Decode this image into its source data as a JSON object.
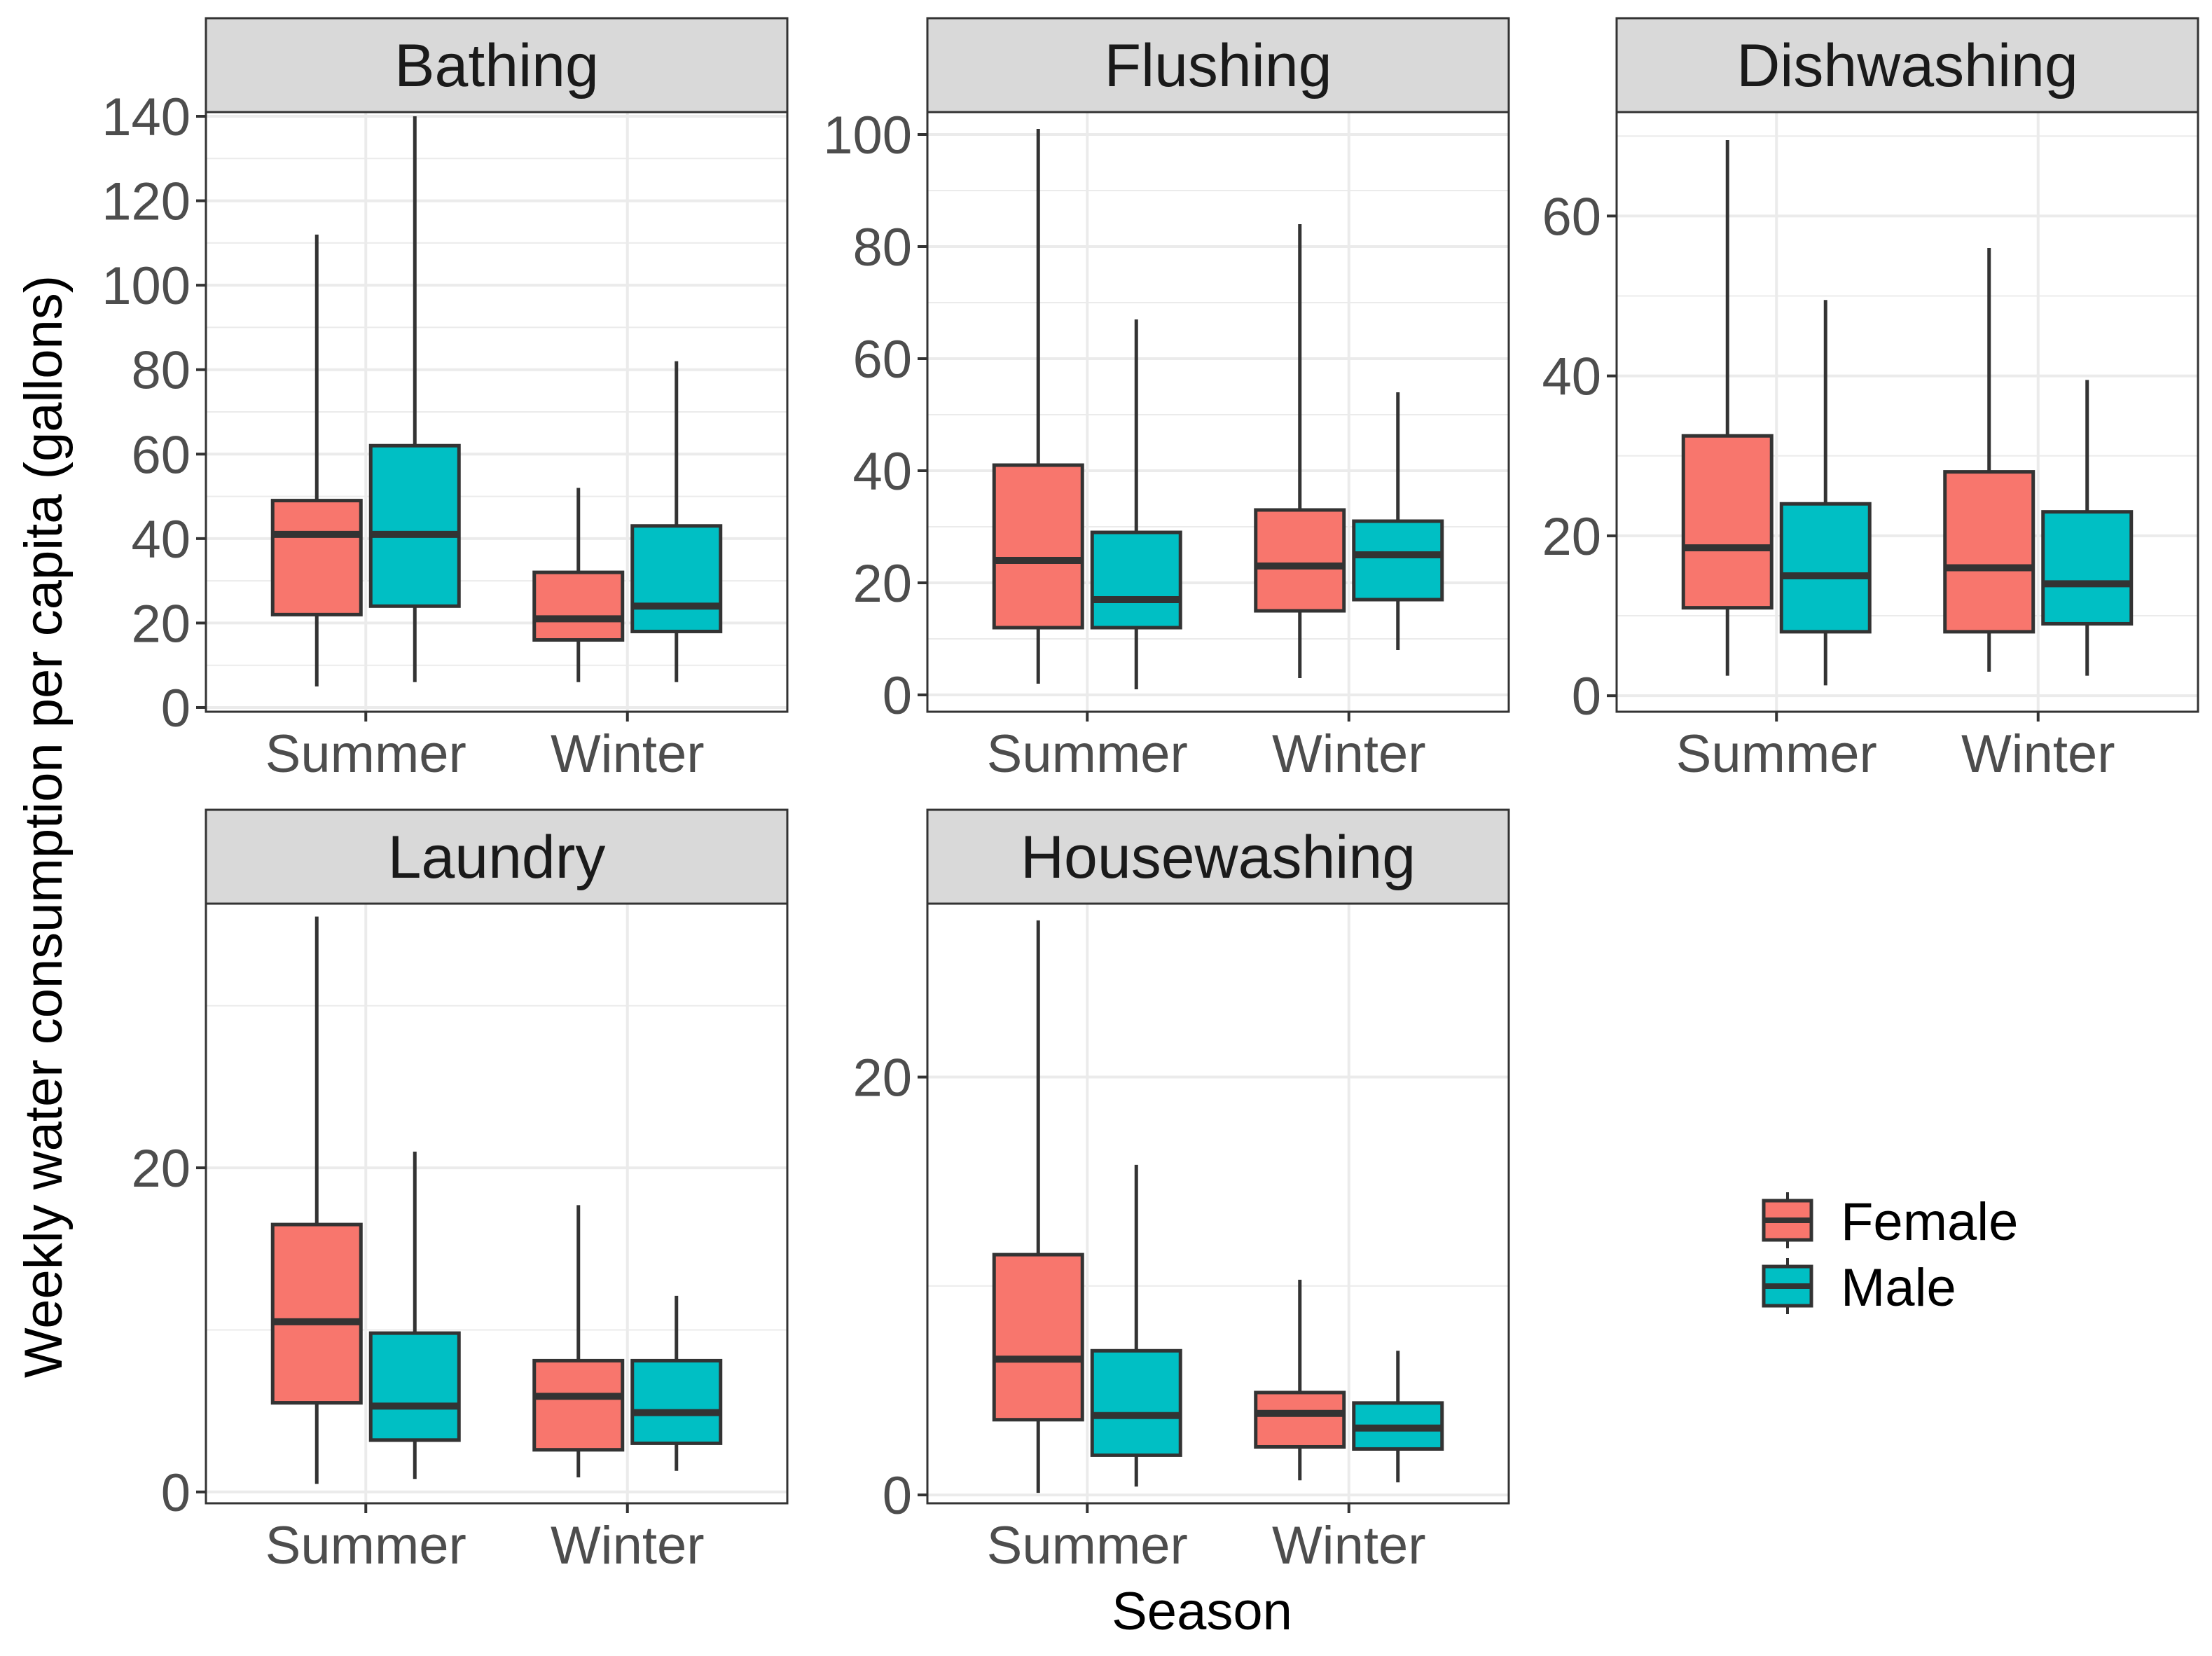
{
  "chart_data": {
    "type": "boxplot",
    "x_label": "Season",
    "y_label": "Weekly water consumption per capita (gallons)",
    "categories": [
      "Summer",
      "Winter"
    ],
    "legend": {
      "position": "right",
      "items": [
        {
          "name": "Female",
          "color": "#F8766D"
        },
        {
          "name": "Male",
          "color": "#00BFC4"
        }
      ]
    },
    "style": {
      "panel_border": "#333333",
      "strip_fill": "#D9D9D9",
      "grid_color": "#EBEBEB",
      "box_line": "#333333"
    },
    "panels": [
      {
        "title": "Bathing",
        "ylim": [
          -1,
          141
        ],
        "ticks": [
          0,
          20,
          40,
          60,
          80,
          100,
          120,
          140
        ],
        "minor": [
          10,
          30,
          50,
          70,
          90,
          110,
          130
        ],
        "boxes": [
          {
            "season": "Summer",
            "group": "Female",
            "min": 5,
            "q1": 22,
            "median": 41,
            "q3": 49,
            "max": 112
          },
          {
            "season": "Summer",
            "group": "Male",
            "min": 6,
            "q1": 24,
            "median": 41,
            "q3": 62,
            "max": 140
          },
          {
            "season": "Winter",
            "group": "Female",
            "min": 6,
            "q1": 16,
            "median": 21,
            "q3": 32,
            "max": 52
          },
          {
            "season": "Winter",
            "group": "Male",
            "min": 6,
            "q1": 18,
            "median": 24,
            "q3": 43,
            "max": 82
          }
        ]
      },
      {
        "title": "Flushing",
        "ylim": [
          -3,
          104
        ],
        "ticks": [
          0,
          20,
          40,
          60,
          80,
          100
        ],
        "minor": [
          10,
          30,
          50,
          70,
          90
        ],
        "boxes": [
          {
            "season": "Summer",
            "group": "Female",
            "min": 2,
            "q1": 12,
            "median": 24,
            "q3": 41,
            "max": 101
          },
          {
            "season": "Summer",
            "group": "Male",
            "min": 1,
            "q1": 12,
            "median": 17,
            "q3": 29,
            "max": 67
          },
          {
            "season": "Winter",
            "group": "Female",
            "min": 3,
            "q1": 15,
            "median": 23,
            "q3": 33,
            "max": 84
          },
          {
            "season": "Winter",
            "group": "Male",
            "min": 8,
            "q1": 17,
            "median": 25,
            "q3": 31,
            "max": 54
          }
        ]
      },
      {
        "title": "Dishwashing",
        "ylim": [
          -2,
          73
        ],
        "ticks": [
          0,
          20,
          40,
          60
        ],
        "minor": [
          10,
          30,
          50,
          70
        ],
        "boxes": [
          {
            "season": "Summer",
            "group": "Female",
            "min": 2.5,
            "q1": 11,
            "median": 18.5,
            "q3": 32.5,
            "max": 69.5
          },
          {
            "season": "Summer",
            "group": "Male",
            "min": 1.3,
            "q1": 8,
            "median": 15,
            "q3": 24,
            "max": 49.5
          },
          {
            "season": "Winter",
            "group": "Female",
            "min": 3,
            "q1": 8,
            "median": 16,
            "q3": 28,
            "max": 56
          },
          {
            "season": "Winter",
            "group": "Male",
            "min": 2.5,
            "q1": 9,
            "median": 14,
            "q3": 23,
            "max": 39.5
          }
        ]
      },
      {
        "title": "Laundry",
        "ylim": [
          -0.7,
          36.3
        ],
        "ticks": [
          0,
          20
        ],
        "minor": [
          10,
          30
        ],
        "boxes": [
          {
            "season": "Summer",
            "group": "Female",
            "min": 0.5,
            "q1": 5.5,
            "median": 10.5,
            "q3": 16.5,
            "max": 35.5
          },
          {
            "season": "Summer",
            "group": "Male",
            "min": 0.8,
            "q1": 3.2,
            "median": 5.3,
            "q3": 9.8,
            "max": 21
          },
          {
            "season": "Winter",
            "group": "Female",
            "min": 0.9,
            "q1": 2.6,
            "median": 5.9,
            "q3": 8.1,
            "max": 17.7
          },
          {
            "season": "Winter",
            "group": "Male",
            "min": 1.3,
            "q1": 3,
            "median": 4.9,
            "q3": 8.1,
            "max": 12.1
          }
        ]
      },
      {
        "title": "Housewashing",
        "ylim": [
          -0.4,
          28.3
        ],
        "ticks": [
          0,
          20
        ],
        "minor": [
          10
        ],
        "boxes": [
          {
            "season": "Summer",
            "group": "Female",
            "min": 0.1,
            "q1": 3.6,
            "median": 6.5,
            "q3": 11.5,
            "max": 27.5
          },
          {
            "season": "Summer",
            "group": "Male",
            "min": 0.4,
            "q1": 1.9,
            "median": 3.8,
            "q3": 6.9,
            "max": 15.8
          },
          {
            "season": "Winter",
            "group": "Female",
            "min": 0.7,
            "q1": 2.3,
            "median": 3.9,
            "q3": 4.9,
            "max": 10.3
          },
          {
            "season": "Winter",
            "group": "Male",
            "min": 0.6,
            "q1": 2.2,
            "median": 3.2,
            "q3": 4.4,
            "max": 6.9
          }
        ]
      }
    ]
  }
}
